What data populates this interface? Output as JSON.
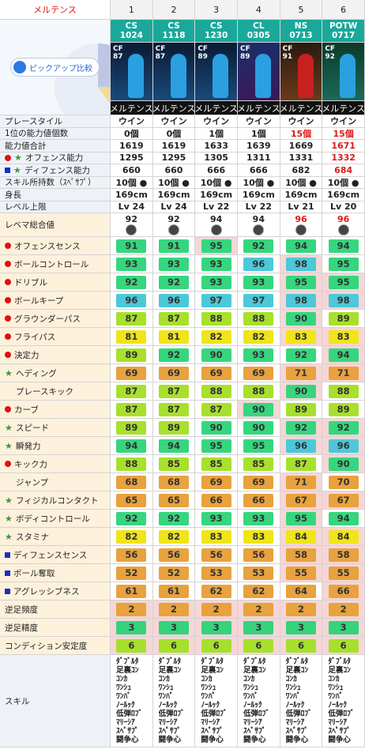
{
  "header": {
    "title": "メルテンス",
    "columns": [
      "1",
      "2",
      "3",
      "4",
      "5",
      "6"
    ]
  },
  "compare_button": "ピックアップ比較",
  "cards": [
    {
      "code": "CS",
      "number": "1024",
      "position": "CF",
      "rating": "87",
      "name": "メルテンス"
    },
    {
      "code": "CS",
      "number": "1118",
      "position": "CF",
      "rating": "87",
      "name": "メルテンス"
    },
    {
      "code": "CS",
      "number": "1230",
      "position": "CF",
      "rating": "89",
      "name": "メルテンス"
    },
    {
      "code": "CL",
      "number": "0305",
      "position": "CF",
      "rating": "89",
      "name": "メルテンス"
    },
    {
      "code": "NS",
      "number": "0713",
      "position": "CF",
      "rating": "91",
      "name": "メルテンス"
    },
    {
      "code": "POTW",
      "number": "0717",
      "position": "CF",
      "rating": "92",
      "name": "メルテンス"
    }
  ],
  "stats": [
    {
      "label": "プレースタイル",
      "markers": [],
      "cells": [
        "ウイン",
        "ウイン",
        "ウイン",
        "ウイン",
        "ウイン",
        "ウイン"
      ]
    },
    {
      "label": "1位の能力値個数",
      "markers": [],
      "cells": [
        "0個",
        "0個",
        "1個",
        "1個",
        "15個",
        "15個"
      ]
    },
    {
      "label": "能力値合計",
      "markers": [],
      "cells": [
        "1619",
        "1619",
        "1633",
        "1639",
        "1669",
        "1671"
      ]
    },
    {
      "label": "オフェンス能力",
      "markers": [
        "red-dot",
        "green-star"
      ],
      "cells": [
        "1295",
        "1295",
        "1305",
        "1311",
        "1331",
        "1332"
      ]
    },
    {
      "label": "ディフェンス能力",
      "markers": [
        "blue-square",
        "green-star"
      ],
      "cells": [
        "660",
        "660",
        "666",
        "666",
        "682",
        "684"
      ]
    },
    {
      "label": "スキル所持数（ｽﾍﾟｻﾌﾟ）",
      "markers": [],
      "cells": [
        "10個 ●",
        "10個 ●",
        "10個 ●",
        "10個 ●",
        "10個 ●",
        "10個 ●"
      ]
    },
    {
      "label": "身長",
      "markers": [],
      "cells": [
        "169cm",
        "169cm",
        "169cm",
        "169cm",
        "169cm",
        "169cm"
      ]
    },
    {
      "label": "レベル上限",
      "markers": [],
      "cells": [
        "Lv 24",
        "Lv 24",
        "Lv 22",
        "Lv 22",
        "Lv 21",
        "Lv 20"
      ]
    }
  ],
  "level_max": {
    "label": "レベマ総合値",
    "values": [
      92,
      92,
      94,
      94,
      96,
      96
    ]
  },
  "abilities": [
    {
      "label": "オフェンスセンス",
      "marker": "red-dot",
      "values": [
        91,
        91,
        95,
        92,
        94,
        94
      ]
    },
    {
      "label": "ボールコントロール",
      "marker": "red-dot",
      "values": [
        93,
        93,
        93,
        96,
        98,
        95
      ]
    },
    {
      "label": "ドリブル",
      "marker": "red-dot",
      "values": [
        92,
        92,
        93,
        93,
        95,
        95
      ]
    },
    {
      "label": "ボールキープ",
      "marker": "red-dot",
      "values": [
        96,
        96,
        97,
        97,
        98,
        98
      ]
    },
    {
      "label": "グラウンダーパス",
      "marker": "red-dot",
      "values": [
        87,
        87,
        88,
        88,
        90,
        89
      ]
    },
    {
      "label": "フライパス",
      "marker": "red-dot",
      "values": [
        81,
        81,
        82,
        82,
        83,
        83
      ]
    },
    {
      "label": "決定力",
      "marker": "red-dot",
      "values": [
        89,
        92,
        90,
        93,
        92,
        94
      ]
    },
    {
      "label": "ヘディング",
      "marker": "green-star",
      "values": [
        69,
        69,
        69,
        69,
        71,
        71
      ]
    },
    {
      "label": "プレースキック",
      "marker": "none",
      "values": [
        87,
        87,
        88,
        88,
        90,
        88
      ]
    },
    {
      "label": "カーブ",
      "marker": "red-dot",
      "values": [
        87,
        87,
        87,
        90,
        89,
        89
      ]
    },
    {
      "label": "スピード",
      "marker": "green-star",
      "values": [
        89,
        89,
        90,
        90,
        92,
        92
      ]
    },
    {
      "label": "瞬発力",
      "marker": "green-star",
      "values": [
        94,
        94,
        95,
        95,
        96,
        96
      ]
    },
    {
      "label": "キック力",
      "marker": "red-dot",
      "values": [
        88,
        85,
        85,
        85,
        87,
        90
      ]
    },
    {
      "label": "ジャンプ",
      "marker": "none",
      "values": [
        68,
        68,
        69,
        69,
        71,
        70
      ]
    },
    {
      "label": "フィジカルコンタクト",
      "marker": "green-star",
      "values": [
        65,
        65,
        66,
        66,
        67,
        67
      ]
    },
    {
      "label": "ボディコントロール",
      "marker": "green-star",
      "values": [
        92,
        92,
        93,
        93,
        95,
        94
      ]
    },
    {
      "label": "スタミナ",
      "marker": "green-star",
      "values": [
        82,
        82,
        83,
        83,
        84,
        84
      ]
    },
    {
      "label": "ディフェンスセンス",
      "marker": "blue-square",
      "values": [
        56,
        56,
        56,
        56,
        58,
        58
      ]
    },
    {
      "label": "ボール奪取",
      "marker": "blue-square",
      "values": [
        52,
        52,
        53,
        53,
        55,
        55
      ]
    },
    {
      "label": "アグレッシブネス",
      "marker": "blue-square",
      "values": [
        61,
        61,
        62,
        62,
        64,
        66
      ]
    }
  ],
  "foot": [
    {
      "label": "逆足頻度",
      "color": "#e8a23e",
      "values": [
        2,
        2,
        2,
        2,
        2,
        2
      ]
    },
    {
      "label": "逆足精度",
      "color": "#36d27c",
      "values": [
        3,
        3,
        3,
        3,
        3,
        3
      ]
    },
    {
      "label": "コンディション安定度",
      "color": "#a6e02c",
      "values": [
        6,
        6,
        6,
        6,
        6,
        6
      ]
    }
  ],
  "skills": {
    "label": "スキル",
    "columns": [
      [
        "ﾀﾞﾌﾞﾙﾀ",
        "足裏ｺﾝ",
        "ｺﾝｶ",
        "ﾜﾝｼｭ",
        "ﾜﾝﾊﾟ",
        "ﾉｰﾙｯｸ",
        "低弾ﾛﾌﾞ",
        "ﾏﾘｰｼｱ",
        "ｽﾍﾟｻﾌﾟ",
        "闘争心"
      ],
      [
        "ﾀﾞﾌﾞﾙﾀ",
        "足裏ｺﾝ",
        "ｺﾝｶ",
        "ﾜﾝｼｭ",
        "ﾜﾝﾊﾟ",
        "ﾉｰﾙｯｸ",
        "低弾ﾛﾌﾞ",
        "ﾏﾘｰｼｱ",
        "ｽﾍﾟｻﾌﾟ",
        "闘争心"
      ],
      [
        "ﾀﾞﾌﾞﾙﾀ",
        "足裏ｺﾝ",
        "ｺﾝｶ",
        "ﾜﾝｼｭ",
        "ﾜﾝﾊﾟ",
        "ﾉｰﾙｯｸ",
        "低弾ﾛﾌﾞ",
        "ﾏﾘｰｼｱ",
        "ｽﾍﾟｻﾌﾟ",
        "闘争心"
      ],
      [
        "ﾀﾞﾌﾞﾙﾀ",
        "足裏ｺﾝ",
        "ｺﾝｶ",
        "ﾜﾝｼｭ",
        "ﾜﾝﾊﾟ",
        "ﾉｰﾙｯｸ",
        "低弾ﾛﾌﾞ",
        "ﾏﾘｰｼｱ",
        "ｽﾍﾟｻﾌﾟ",
        "闘争心"
      ],
      [
        "ﾀﾞﾌﾞﾙﾀ",
        "足裏ｺﾝ",
        "ｺﾝｶ",
        "ﾜﾝｼｭ",
        "ﾜﾝﾊﾟ",
        "ﾉｰﾙｯｸ",
        "低弾ﾛﾌﾞ",
        "ﾏﾘｰｼｱ",
        "ｽﾍﾟｻﾌﾟ",
        "闘争心"
      ],
      [
        "ﾀﾞﾌﾞﾙﾀ",
        "足裏ｺﾝ",
        "ｺﾝｶ",
        "ﾜﾝｼｭ",
        "ﾜﾝﾊﾟ",
        "ﾉｰﾙｯｸ",
        "低弾ﾛﾌﾞ",
        "ﾏﾘｰｼｱ",
        "ｽﾍﾟｻﾌﾟ",
        "闘争心"
      ]
    ]
  }
}
